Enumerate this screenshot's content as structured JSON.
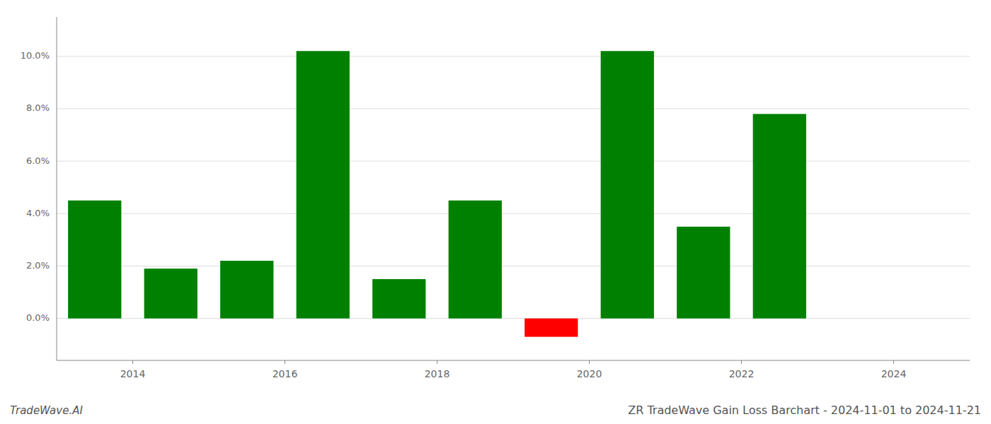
{
  "chart_data": {
    "type": "bar",
    "title": "ZR TradeWave Gain Loss Barchart - 2024-11-01 to 2024-11-21",
    "annotations": [
      "TradeWave.AI"
    ],
    "x": [
      2013.5,
      2014.5,
      2015.5,
      2016.5,
      2017.5,
      2018.5,
      2019.5,
      2020.5,
      2021.5,
      2022.5
    ],
    "values": [
      0.045,
      0.019,
      0.022,
      0.102,
      0.015,
      0.045,
      -0.007,
      0.102,
      0.035,
      0.078
    ],
    "colors": [
      "#008000",
      "#008000",
      "#008000",
      "#008000",
      "#008000",
      "#008000",
      "#ff0000",
      "#008000",
      "#008000",
      "#008000"
    ],
    "xlim": [
      2013.0,
      2025.0
    ],
    "xticks": [
      2014,
      2016,
      2018,
      2020,
      2022,
      2024
    ],
    "ylim": [
      -0.016,
      0.115
    ],
    "yticks": [
      {
        "value": 0,
        "label": "0.0%"
      },
      {
        "value": 0.02,
        "label": "2.0%"
      },
      {
        "value": 0.04,
        "label": "4.0%"
      },
      {
        "value": 0.06,
        "label": "6.0%"
      },
      {
        "value": 0.08,
        "label": "8.0%"
      },
      {
        "value": 0.1,
        "label": "10.0%"
      }
    ],
    "grid": true
  }
}
